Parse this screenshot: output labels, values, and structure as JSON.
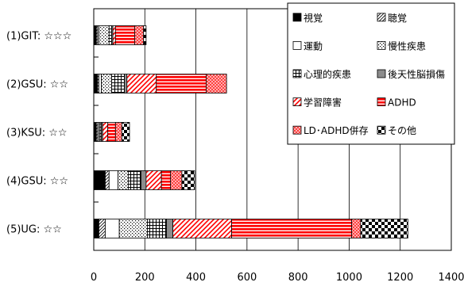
{
  "chart_data": {
    "type": "bar",
    "orientation": "horizontal",
    "stacked": true,
    "categories": [
      "(1)GIT: ☆☆☆",
      "(2)GSU: ☆☆",
      "(3)KSU: ☆☆",
      "(4)GSU: ☆☆",
      "(5)UG:      ☆☆"
    ],
    "xlim": [
      0,
      1400
    ],
    "xticks": [
      "0",
      "200",
      "400",
      "600",
      "800",
      "1000",
      "1200",
      "1400"
    ],
    "grid": true,
    "legend_position": "top-right",
    "series": [
      {
        "name": "視覚",
        "pattern": "solid",
        "values": [
          10,
          15,
          10,
          45,
          20
        ]
      },
      {
        "name": "聴覚",
        "pattern": "diag-fine",
        "values": [
          5,
          5,
          5,
          15,
          25
        ]
      },
      {
        "name": "運動",
        "pattern": "blank",
        "values": [
          5,
          10,
          5,
          35,
          55
        ]
      },
      {
        "name": "慢性疾患",
        "pattern": "dots",
        "values": [
          40,
          40,
          5,
          40,
          110
        ]
      },
      {
        "name": "心理的疾患",
        "pattern": "grid",
        "values": [
          10,
          50,
          5,
          50,
          75
        ]
      },
      {
        "name": "後天性脳損傷",
        "pattern": "gray",
        "values": [
          5,
          10,
          5,
          20,
          25
        ]
      },
      {
        "name": "学習障害",
        "pattern": "diag-red",
        "values": [
          10,
          115,
          20,
          60,
          230
        ]
      },
      {
        "name": "ADHD",
        "pattern": "red-lines",
        "values": [
          75,
          195,
          30,
          35,
          470
        ]
      },
      {
        "name": "LD･ADHD併存",
        "pattern": "red-check",
        "values": [
          35,
          80,
          25,
          45,
          35
        ]
      },
      {
        "name": "その他",
        "pattern": "checker",
        "values": [
          10,
          0,
          30,
          50,
          185
        ]
      }
    ]
  }
}
